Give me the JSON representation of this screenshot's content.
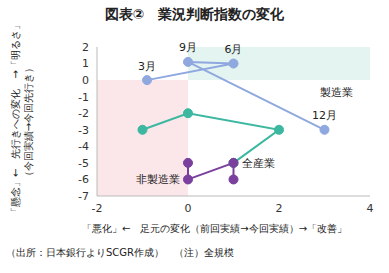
{
  "chart_data": {
    "type": "scatter",
    "title": "図表②　業況判断指数の変化",
    "x_label": "「悪化」←　足元の変化（前回実績→今回実績）→「改善」",
    "y_label": [
      "「懸念」←　先行きへの変化　→「明るさ」",
      "（今回実績→今回先行き）"
    ],
    "footnote": "（出所：日本銀行よりSCGR作成）　（注）全規模",
    "xlim": [
      -2,
      4
    ],
    "xticks": [
      -2,
      0,
      2,
      4
    ],
    "ylim": [
      -7,
      2
    ],
    "yticks": [
      2,
      1,
      0,
      -1,
      -2,
      -3,
      -4,
      -5,
      -6,
      -7
    ],
    "grid": false,
    "series": [
      {
        "name": "製造業",
        "color": "#8fa8e0",
        "marker": "circle",
        "line_style": "solid",
        "x": [
          -0.9,
          1,
          0,
          3
        ],
        "y": [
          0,
          1,
          1.1,
          -3
        ],
        "point_labels": [
          "3月",
          "6月",
          "9月",
          "12月"
        ]
      },
      {
        "name": "全産業",
        "color": "#3cb8a0",
        "marker": "circle",
        "line_style": "solid",
        "x": [
          -1,
          0,
          2,
          1
        ],
        "y": [
          -3,
          -2,
          -3,
          -5
        ]
      },
      {
        "name": "非製造業",
        "color": "#7b3f9e",
        "marker": "circle",
        "line_style": "solid",
        "x": [
          0,
          0,
          1,
          1
        ],
        "y": [
          -5,
          -6,
          -5,
          -6
        ]
      }
    ]
  }
}
